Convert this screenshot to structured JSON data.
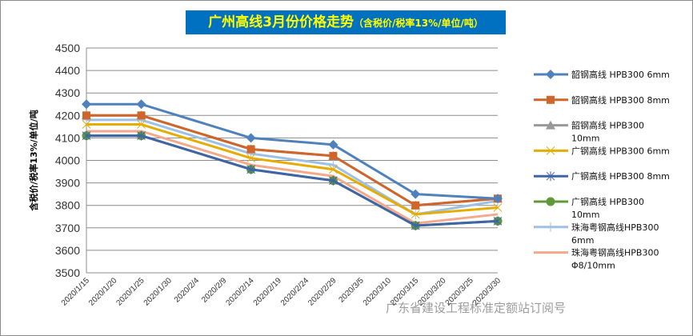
{
  "chart_data": {
    "type": "line",
    "title": "广州高线3月份价格走势",
    "subtitle": "（含税价/税率13%/单位/吨）",
    "ylabel": "含税价/税率13%/单位/吨",
    "xlabel": "",
    "ylim": [
      3500,
      4500
    ],
    "yticks": [
      3500,
      3600,
      3700,
      3800,
      3900,
      4000,
      4100,
      4200,
      4300,
      4400,
      4500
    ],
    "xticks": [
      "2020/1/15",
      "2020/1/20",
      "2020/1/25",
      "2020/1/30",
      "2020/2/4",
      "2020/2/9",
      "2020/2/14",
      "2020/2/19",
      "2020/2/24",
      "2020/2/29",
      "2020/3/5",
      "2020/3/10",
      "2020/3/15",
      "2020/3/20",
      "2020/3/25",
      "2020/3/30"
    ],
    "x": [
      "2020/1/15",
      "2020/1/25",
      "2020/2/14",
      "2020/2/29",
      "2020/3/15",
      "2020/3/30"
    ],
    "grid": "horizontal",
    "legend_position": "right",
    "series": [
      {
        "name": "韶钢高线 HPB300 6mm",
        "legend_lines": [
          "韶钢高线 HPB300 6mm"
        ],
        "color": "#4f81bd",
        "marker": "diamond",
        "values": [
          4250,
          4250,
          4100,
          4070,
          3850,
          3830
        ]
      },
      {
        "name": "韶钢高线 HPB300 8mm",
        "legend_lines": [
          "韶钢高线 HPB300 8mm"
        ],
        "color": "#d0652b",
        "marker": "square",
        "values": [
          4200,
          4200,
          4050,
          4020,
          3800,
          3830
        ]
      },
      {
        "name": "韶钢高线 HPB300 10mm",
        "legend_lines": [
          "韶钢高线 HPB300",
          "10mm"
        ],
        "color": "#999999",
        "marker": "triangle",
        "values": [
          4200,
          4200,
          4050,
          4020,
          3800,
          3830
        ]
      },
      {
        "name": "广钢高线 HPB300 6mm",
        "legend_lines": [
          "广钢高线 HPB300 6mm"
        ],
        "color": "#e6ac00",
        "marker": "x",
        "values": [
          4160,
          4160,
          4010,
          3960,
          3760,
          3790
        ]
      },
      {
        "name": "广钢高线 HPB300 8mm",
        "legend_lines": [
          "广钢高线 HPB300 8mm"
        ],
        "color": "#3f64a8",
        "marker": "star",
        "values": [
          4110,
          4110,
          3960,
          3910,
          3710,
          3730
        ]
      },
      {
        "name": "广钢高线 HPB300 10mm",
        "legend_lines": [
          "广钢高线 HPB300",
          "10mm"
        ],
        "color": "#5e9a3a",
        "marker": "circle",
        "values": [
          4110,
          4110,
          3960,
          3910,
          3710,
          3730
        ]
      },
      {
        "name": "珠海粤钢高线HPB300 6mm",
        "legend_lines": [
          "珠海粤钢高线HPB300",
          "6mm"
        ],
        "color": "#9dc0e6",
        "marker": "plus",
        "values": [
          4180,
          4180,
          4030,
          3980,
          3760,
          3820
        ]
      },
      {
        "name": "珠海粤钢高线HPB300 Φ8/10mm",
        "legend_lines": [
          "珠海粤钢高线HPB300",
          "Φ8/10mm"
        ],
        "color": "#f4a98a",
        "marker": "none",
        "values": [
          4130,
          4130,
          3980,
          3930,
          3720,
          3760
        ]
      }
    ]
  },
  "watermark": "广东省建设工程标准定额站订阅号"
}
